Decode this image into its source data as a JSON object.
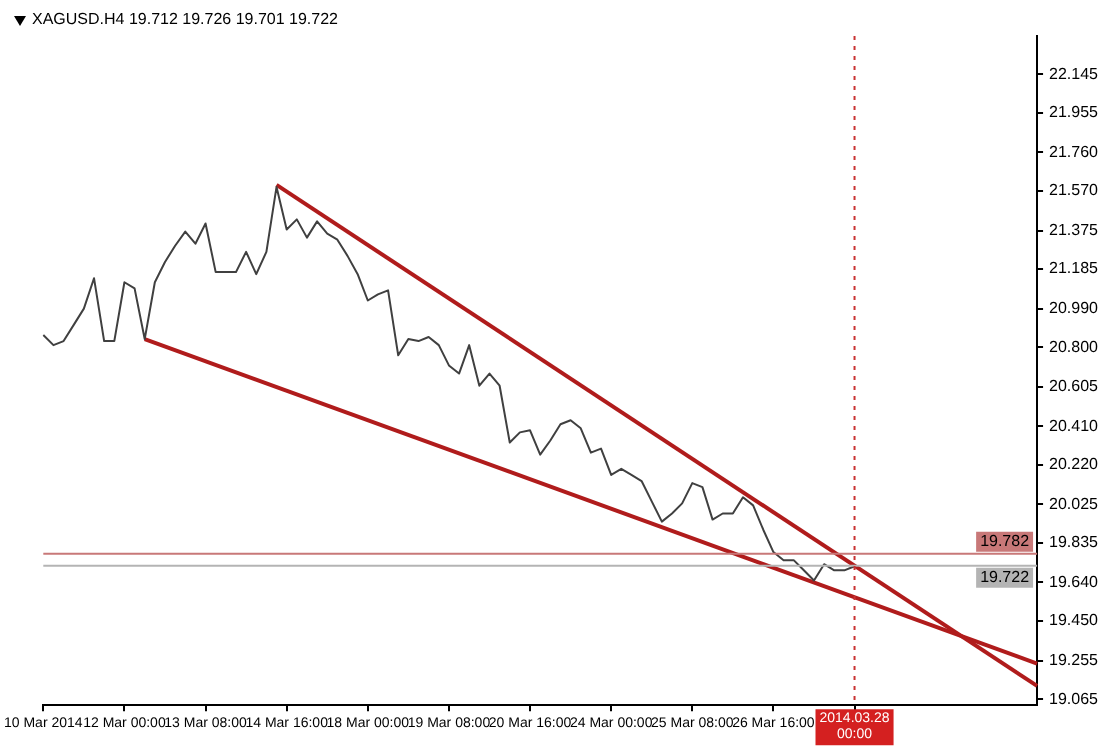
{
  "chart_data": {
    "type": "line",
    "title": "XAGUSD.H4  19.712 19.726 19.701 19.722",
    "categories": [
      "10 Mar 2014",
      null,
      null,
      null,
      null,
      null,
      null,
      null,
      "12 Mar 00:00",
      null,
      null,
      null,
      null,
      null,
      null,
      null,
      "13 Mar 08:00",
      null,
      null,
      null,
      null,
      null,
      null,
      null,
      "14 Mar 16:00",
      null,
      null,
      null,
      null,
      null,
      null,
      null,
      "18 Mar 00:00",
      null,
      null,
      null,
      null,
      null,
      null,
      null,
      "19 Mar 08:00",
      null,
      null,
      null,
      null,
      null,
      null,
      null,
      "20 Mar 16:00",
      null,
      null,
      null,
      null,
      null,
      null,
      null,
      "24 Mar 00:00",
      null,
      null,
      null,
      null,
      null,
      null,
      null,
      "25 Mar 08:00",
      null,
      null,
      null,
      null,
      null,
      null,
      null,
      "26 Mar 16:00",
      null,
      null,
      null,
      null,
      null,
      null,
      null,
      "2014.03.28 00:00",
      null,
      null,
      null,
      null,
      null,
      null,
      null,
      null,
      null,
      null,
      null,
      null,
      null,
      null,
      null,
      null,
      null,
      null
    ],
    "ylim": [
      19.035,
      22.334
    ],
    "yticks": [
      22.145,
      21.955,
      {
        "value": 21.76,
        "label": "21.760"
      },
      {
        "value": 21.57,
        "label": "21.570"
      },
      21.375,
      21.185,
      {
        "value": 20.99,
        "label": "20.990"
      },
      {
        "value": 20.8,
        "label": "20.800"
      },
      20.605,
      {
        "value": 20.41,
        "label": "20.410"
      },
      {
        "value": 20.22,
        "label": "20.220"
      },
      20.025,
      19.835,
      {
        "value": 19.64,
        "label": "19.640"
      },
      {
        "value": 19.45,
        "label": "19.450"
      },
      19.255,
      19.065
    ],
    "grid": false,
    "legend": false,
    "marker": "none",
    "series": [
      {
        "color": "#404040",
        "values": [
          20.86,
          20.81,
          20.83,
          20.91,
          20.99,
          21.14,
          20.83,
          20.83,
          21.12,
          21.09,
          20.84,
          21.12,
          21.22,
          21.3,
          21.37,
          21.31,
          21.41,
          21.17,
          21.17,
          21.17,
          21.27,
          21.16,
          21.27,
          21.59,
          21.38,
          21.43,
          21.34,
          21.42,
          21.36,
          21.33,
          21.25,
          21.16,
          21.03,
          21.06,
          21.08,
          20.76,
          20.84,
          20.83,
          20.85,
          20.81,
          20.71,
          20.67,
          20.81,
          20.61,
          20.67,
          20.61,
          20.33,
          20.38,
          20.39,
          20.27,
          20.34,
          20.42,
          20.44,
          20.4,
          20.28,
          20.3,
          20.17,
          20.2,
          20.17,
          20.14,
          20.04,
          19.94,
          19.98,
          20.03,
          20.13,
          20.11,
          19.95,
          19.98,
          19.98,
          20.06,
          20.02,
          19.9,
          19.79,
          19.75,
          19.75,
          19.7,
          19.65,
          19.73,
          19.7,
          19.7,
          19.72,
          null,
          null,
          null,
          null,
          null,
          null,
          null,
          null,
          null,
          null,
          null,
          null,
          null,
          null,
          null,
          null,
          null,
          null
        ]
      },
      {
        "type": "line",
        "color": "#b01c1c",
        "values": [
          null,
          null,
          null,
          null,
          null,
          null,
          null,
          null,
          null,
          null,
          null,
          null,
          null,
          null,
          null,
          null,
          null,
          null,
          null,
          null,
          null,
          null,
          null,
          21.6,
          null,
          null,
          null,
          null,
          null,
          null,
          null,
          null,
          null,
          null,
          null,
          null,
          null,
          null,
          null,
          null,
          null,
          null,
          null,
          null,
          null,
          null,
          null,
          null,
          null,
          null,
          null,
          null,
          null,
          null,
          null,
          null,
          null,
          null,
          null,
          null,
          null,
          null,
          null,
          null,
          null,
          null,
          null,
          null,
          null,
          null,
          null,
          null,
          null,
          null,
          null,
          null,
          null,
          null,
          null,
          null,
          null,
          null,
          null,
          null,
          null,
          null,
          null,
          null,
          null,
          null,
          null,
          null,
          null,
          null,
          null,
          null,
          null,
          null,
          19.13
        ]
      },
      {
        "type": "line",
        "color": "#b01c1c",
        "values": [
          null,
          null,
          null,
          null,
          null,
          null,
          null,
          null,
          null,
          null,
          20.84,
          null,
          null,
          null,
          null,
          null,
          null,
          null,
          null,
          null,
          null,
          null,
          null,
          null,
          null,
          null,
          null,
          null,
          null,
          null,
          null,
          null,
          null,
          null,
          null,
          null,
          null,
          null,
          null,
          null,
          null,
          null,
          null,
          null,
          null,
          null,
          null,
          null,
          null,
          null,
          null,
          null,
          null,
          null,
          null,
          null,
          null,
          null,
          null,
          null,
          null,
          null,
          null,
          null,
          null,
          null,
          null,
          null,
          null,
          null,
          null,
          null,
          null,
          null,
          null,
          null,
          null,
          null,
          null,
          null,
          null,
          null,
          null,
          null,
          null,
          null,
          null,
          null,
          null,
          null,
          null,
          null,
          null,
          null,
          null,
          null,
          null,
          null,
          19.24
        ]
      }
    ],
    "ref_lines": [
      {
        "axis": "y",
        "value": 19.782,
        "label": "19.782",
        "color": "#c87878"
      },
      {
        "axis": "y",
        "value": 19.722,
        "label": "19.722",
        "color": "#b4b4b4"
      },
      {
        "axis": "x",
        "value": "2014.03.28 00:00",
        "color": "#c83232",
        "line_style": "dotted"
      }
    ]
  }
}
